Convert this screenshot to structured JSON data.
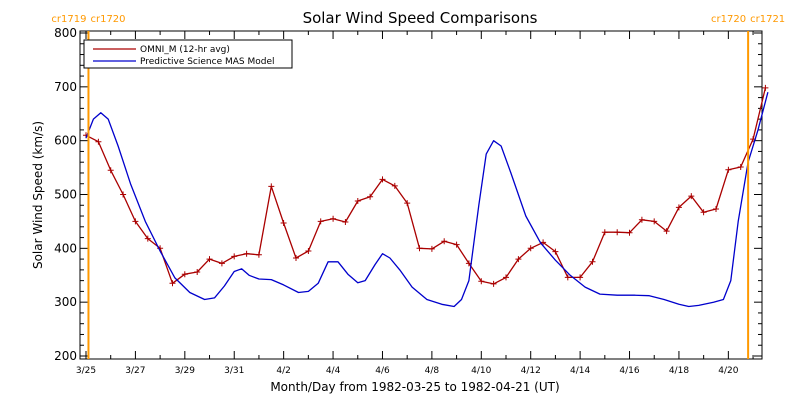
{
  "chart_data": {
    "type": "line",
    "title": "Solar Wind Speed Comparisons",
    "xlabel": "Month/Day from 1982-03-25 to 1982-04-21 (UT)",
    "ylabel": "Solar Wind Speed (km/s)",
    "x_start_date": "1982-03-25",
    "xlim_days": [
      0,
      27.2
    ],
    "ylim": [
      200,
      800
    ],
    "yticks": [
      200,
      300,
      400,
      500,
      600,
      700,
      800
    ],
    "xtick_labels": [
      "3/25",
      "3/27",
      "3/29",
      "3/31",
      "4/2",
      "4/4",
      "4/6",
      "4/8",
      "4/10",
      "4/12",
      "4/14",
      "4/16",
      "4/18",
      "4/20"
    ],
    "legend_position": "top-left",
    "carrington_markers": [
      {
        "day": 0.1,
        "left_label": "cr1719",
        "right_label": "cr1720",
        "color": "#ff9900"
      },
      {
        "day": 26.8,
        "left_label": "cr1720",
        "right_label": "cr1721",
        "color": "#ff9900"
      }
    ],
    "series": [
      {
        "name": "OMNI_M (12-hr avg)",
        "color": "#aa0000",
        "marker": "+",
        "points": [
          [
            0.0,
            610
          ],
          [
            0.5,
            598
          ],
          [
            1.0,
            545
          ],
          [
            1.5,
            500
          ],
          [
            2.0,
            450
          ],
          [
            2.5,
            418
          ],
          [
            3.0,
            400
          ],
          [
            3.5,
            335
          ],
          [
            4.0,
            352
          ],
          [
            4.5,
            356
          ],
          [
            5.0,
            380
          ],
          [
            5.5,
            372
          ],
          [
            6.0,
            385
          ],
          [
            6.5,
            390
          ],
          [
            7.0,
            388
          ],
          [
            7.5,
            515
          ],
          [
            8.0,
            447
          ],
          [
            8.5,
            382
          ],
          [
            9.0,
            395
          ],
          [
            9.5,
            450
          ],
          [
            10.0,
            455
          ],
          [
            10.5,
            449
          ],
          [
            11.0,
            488
          ],
          [
            11.5,
            496
          ],
          [
            12.0,
            528
          ],
          [
            12.5,
            516
          ],
          [
            13.0,
            484
          ],
          [
            13.5,
            400
          ],
          [
            14.0,
            399
          ],
          [
            14.5,
            413
          ],
          [
            15.0,
            407
          ],
          [
            15.5,
            372
          ],
          [
            16.0,
            339
          ],
          [
            16.5,
            334
          ],
          [
            17.0,
            346
          ],
          [
            17.5,
            380
          ],
          [
            18.0,
            400
          ],
          [
            18.5,
            411
          ],
          [
            19.0,
            394
          ],
          [
            19.5,
            346
          ],
          [
            20.0,
            346
          ],
          [
            20.5,
            375
          ],
          [
            21.0,
            430
          ],
          [
            21.5,
            430
          ],
          [
            22.0,
            429
          ],
          [
            22.5,
            453
          ],
          [
            23.0,
            450
          ],
          [
            23.5,
            432
          ],
          [
            24.0,
            476
          ],
          [
            24.5,
            497
          ],
          [
            25.0,
            467
          ],
          [
            25.5,
            473
          ],
          [
            26.0,
            546
          ],
          [
            26.5,
            551
          ],
          [
            27.0,
            603
          ],
          [
            27.5,
            698
          ]
        ]
      },
      {
        "name": "Predictive Science MAS Model",
        "color": "#0000cc",
        "points": [
          [
            0.0,
            605
          ],
          [
            0.3,
            640
          ],
          [
            0.6,
            652
          ],
          [
            0.9,
            640
          ],
          [
            1.3,
            590
          ],
          [
            1.8,
            520
          ],
          [
            2.4,
            450
          ],
          [
            3.0,
            395
          ],
          [
            3.6,
            345
          ],
          [
            4.2,
            318
          ],
          [
            4.8,
            305
          ],
          [
            5.2,
            308
          ],
          [
            5.6,
            330
          ],
          [
            6.0,
            357
          ],
          [
            6.3,
            362
          ],
          [
            6.6,
            350
          ],
          [
            7.0,
            343
          ],
          [
            7.5,
            342
          ],
          [
            8.0,
            332
          ],
          [
            8.6,
            318
          ],
          [
            9.0,
            320
          ],
          [
            9.4,
            335
          ],
          [
            9.8,
            375
          ],
          [
            10.2,
            375
          ],
          [
            10.6,
            352
          ],
          [
            11.0,
            336
          ],
          [
            11.3,
            340
          ],
          [
            11.7,
            370
          ],
          [
            12.0,
            390
          ],
          [
            12.3,
            382
          ],
          [
            12.7,
            360
          ],
          [
            13.2,
            328
          ],
          [
            13.8,
            305
          ],
          [
            14.4,
            296
          ],
          [
            14.9,
            292
          ],
          [
            15.2,
            305
          ],
          [
            15.5,
            340
          ],
          [
            15.9,
            480
          ],
          [
            16.2,
            575
          ],
          [
            16.5,
            600
          ],
          [
            16.8,
            590
          ],
          [
            17.2,
            540
          ],
          [
            17.8,
            460
          ],
          [
            18.4,
            410
          ],
          [
            19.0,
            378
          ],
          [
            19.6,
            350
          ],
          [
            20.2,
            328
          ],
          [
            20.8,
            315
          ],
          [
            21.5,
            313
          ],
          [
            22.2,
            313
          ],
          [
            22.8,
            312
          ],
          [
            23.4,
            305
          ],
          [
            24.0,
            296
          ],
          [
            24.4,
            292
          ],
          [
            24.8,
            294
          ],
          [
            25.4,
            300
          ],
          [
            25.8,
            305
          ],
          [
            26.1,
            340
          ],
          [
            26.4,
            450
          ],
          [
            26.8,
            560
          ],
          [
            27.2,
            620
          ],
          [
            27.6,
            690
          ]
        ]
      }
    ]
  }
}
